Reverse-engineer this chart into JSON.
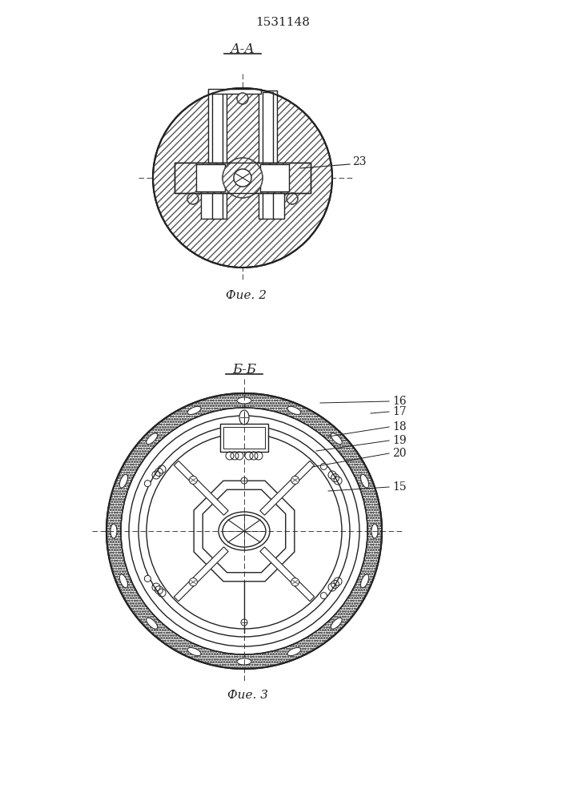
{
  "title": "1531148",
  "fig2_label": "А-А",
  "fig2_caption": "Фие. 2",
  "fig3_label": "Б-Б",
  "fig3_caption": "Фие. 3",
  "label_23": "23",
  "label_16": "16",
  "label_17": "17",
  "label_18": "18",
  "label_19": "19",
  "label_20": "20",
  "label_15": "15",
  "bg_color": "#ffffff",
  "line_color": "#222222"
}
